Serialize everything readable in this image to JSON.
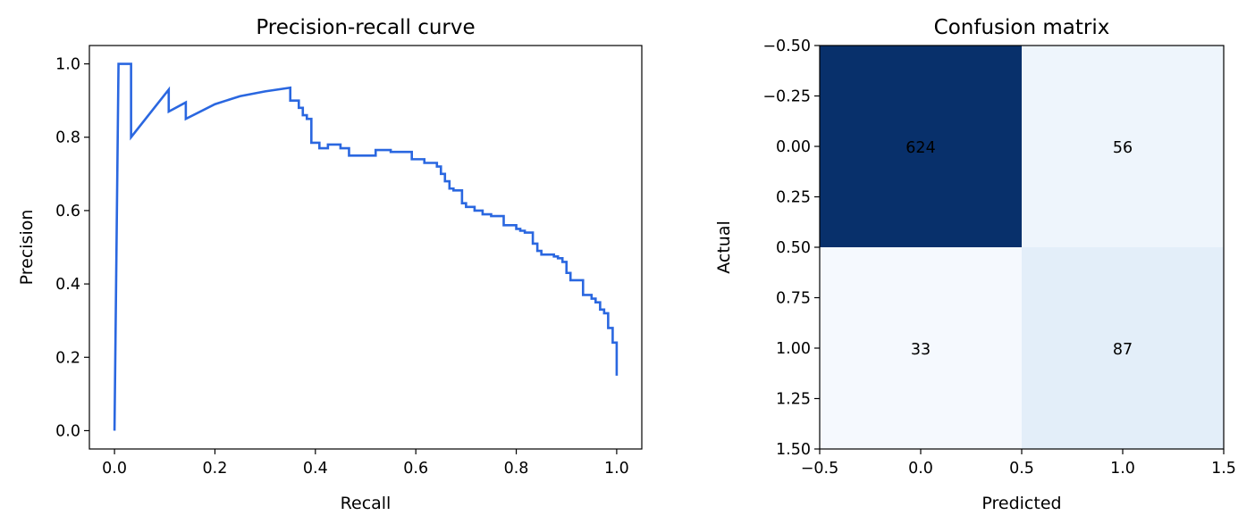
{
  "chart_data": [
    {
      "type": "line",
      "title": "Precision-recall curve",
      "xlabel": "Recall",
      "ylabel": "Precision",
      "xlim": [
        -0.05,
        1.05
      ],
      "ylim": [
        -0.05,
        1.05
      ],
      "xticks": [
        "0.0",
        "0.2",
        "0.4",
        "0.6",
        "0.8",
        "1.0"
      ],
      "yticks": [
        "0.0",
        "0.2",
        "0.4",
        "0.6",
        "0.8",
        "1.0"
      ],
      "grid": false,
      "color": "#2a67e0",
      "series": [
        {
          "x": [
            0.0,
            0.008,
            0.008,
            0.033,
            0.033,
            0.108,
            0.108,
            0.142,
            0.142,
            0.2,
            0.25,
            0.3,
            0.35,
            0.35,
            0.367,
            0.367,
            0.375,
            0.375,
            0.383,
            0.383,
            0.392,
            0.392,
            0.408,
            0.408,
            0.425,
            0.425,
            0.45,
            0.45,
            0.467,
            0.467,
            0.52,
            0.52,
            0.55,
            0.55,
            0.592,
            0.592,
            0.617,
            0.617,
            0.642,
            0.642,
            0.65,
            0.65,
            0.658,
            0.658,
            0.667,
            0.667,
            0.675,
            0.675,
            0.692,
            0.692,
            0.7,
            0.7,
            0.717,
            0.717,
            0.733,
            0.733,
            0.75,
            0.75,
            0.775,
            0.775,
            0.8,
            0.8,
            0.808,
            0.808,
            0.817,
            0.817,
            0.833,
            0.833,
            0.842,
            0.842,
            0.85,
            0.85,
            0.875,
            0.875,
            0.883,
            0.883,
            0.892,
            0.892,
            0.9,
            0.9,
            0.908,
            0.908,
            0.933,
            0.933,
            0.95,
            0.95,
            0.958,
            0.958,
            0.967,
            0.967,
            0.975,
            0.975,
            0.983,
            0.983,
            0.992,
            0.992,
            1.0,
            1.0
          ],
          "y": [
            0.0,
            1.0,
            1.0,
            1.0,
            0.8,
            0.93,
            0.87,
            0.895,
            0.85,
            0.89,
            0.912,
            0.925,
            0.935,
            0.9,
            0.9,
            0.88,
            0.88,
            0.86,
            0.86,
            0.85,
            0.85,
            0.785,
            0.785,
            0.77,
            0.77,
            0.78,
            0.78,
            0.77,
            0.77,
            0.75,
            0.75,
            0.765,
            0.765,
            0.76,
            0.76,
            0.74,
            0.74,
            0.73,
            0.73,
            0.72,
            0.72,
            0.7,
            0.7,
            0.68,
            0.68,
            0.66,
            0.66,
            0.655,
            0.655,
            0.62,
            0.62,
            0.61,
            0.61,
            0.6,
            0.6,
            0.59,
            0.59,
            0.585,
            0.585,
            0.56,
            0.56,
            0.55,
            0.55,
            0.545,
            0.545,
            0.54,
            0.54,
            0.51,
            0.51,
            0.49,
            0.49,
            0.48,
            0.48,
            0.475,
            0.475,
            0.47,
            0.47,
            0.46,
            0.46,
            0.43,
            0.43,
            0.41,
            0.41,
            0.37,
            0.37,
            0.36,
            0.36,
            0.35,
            0.35,
            0.33,
            0.33,
            0.32,
            0.32,
            0.28,
            0.28,
            0.24,
            0.24,
            0.15
          ]
        }
      ]
    },
    {
      "type": "heatmap",
      "title": "Confusion matrix",
      "xlabel": "Predicted",
      "ylabel": "Actual",
      "xlim": [
        -0.5,
        1.5
      ],
      "ylim": [
        1.5,
        -0.5
      ],
      "xticks": [
        "−0.5",
        "0.0",
        "0.5",
        "1.0",
        "1.5"
      ],
      "yticks": [
        "−0.50",
        "−0.25",
        "0.00",
        "0.25",
        "0.50",
        "0.75",
        "1.00",
        "1.25",
        "1.50"
      ],
      "colormap": "Blues",
      "cells": [
        {
          "row": 0,
          "col": 0,
          "value": 624,
          "label": "624",
          "color": "#08306b"
        },
        {
          "row": 0,
          "col": 1,
          "value": 56,
          "label": "56",
          "color": "#eef5fc"
        },
        {
          "row": 1,
          "col": 0,
          "value": 33,
          "label": "33",
          "color": "#f5f9fe"
        },
        {
          "row": 1,
          "col": 1,
          "value": 87,
          "label": "87",
          "color": "#e3eef9"
        }
      ]
    }
  ]
}
